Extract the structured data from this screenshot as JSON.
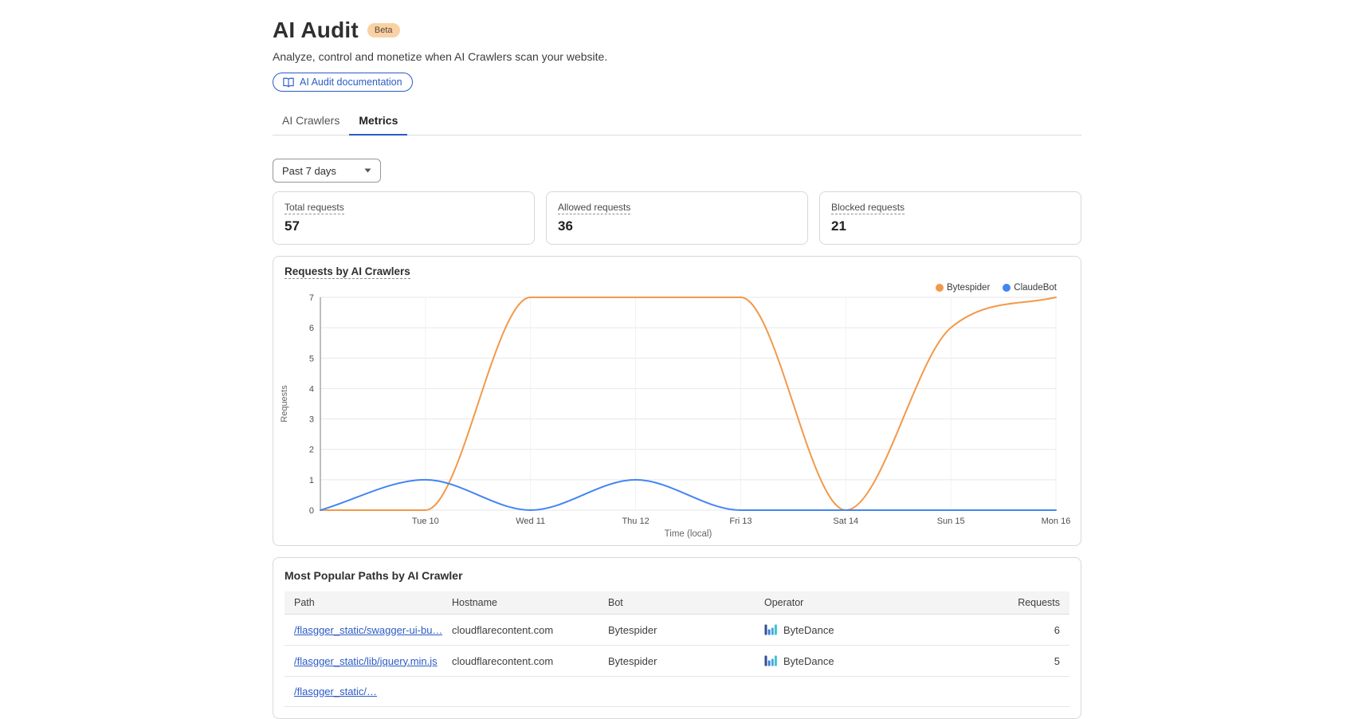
{
  "header": {
    "title": "AI Audit",
    "badge": "Beta",
    "subtitle": "Analyze, control and monetize when AI Crawlers scan your website.",
    "doc_button": "AI Audit documentation",
    "doc_button_icon": "book-icon"
  },
  "tabs": [
    {
      "label": "AI Crawlers",
      "active": false
    },
    {
      "label": "Metrics",
      "active": true
    }
  ],
  "filters": {
    "date_range": "Past 7 days",
    "caret_icon": "caret-down-icon"
  },
  "stats": [
    {
      "label": "Total requests",
      "value": "57"
    },
    {
      "label": "Allowed requests",
      "value": "36"
    },
    {
      "label": "Blocked requests",
      "value": "21"
    }
  ],
  "chart_data": {
    "type": "line",
    "title": "Requests by AI Crawlers",
    "curve": "monotone",
    "x_labels": [
      "",
      "Tue 10",
      "Wed 11",
      "Thu 12",
      "Fri 13",
      "Sat 14",
      "Sun 15",
      "Mon 16"
    ],
    "series": [
      {
        "name": "Bytespider",
        "color": "#F2994A",
        "values": [
          0,
          0,
          7,
          7,
          7,
          0,
          6,
          7
        ]
      },
      {
        "name": "ClaudeBot",
        "color": "#4285F4",
        "values": [
          0,
          1,
          0,
          1,
          0,
          0,
          0,
          0
        ]
      }
    ],
    "xlabel": "Time (local)",
    "ylabel": "Requests",
    "ylim": [
      0,
      7
    ],
    "yticks": [
      0,
      1,
      2,
      3,
      4,
      5,
      6,
      7
    ],
    "grid": true,
    "legend_position": "top-right"
  },
  "table": {
    "title": "Most Popular Paths by AI Crawler",
    "columns": [
      "Path",
      "Hostname",
      "Bot",
      "Operator",
      "Requests"
    ],
    "operator_icon": "bytedance-logo-icon",
    "rows": [
      {
        "path": "/flasgger_static/swagger-ui-bu…",
        "hostname": "cloudflarecontent.com",
        "bot": "Bytespider",
        "operator": "ByteDance",
        "requests": "6"
      },
      {
        "path": "/flasgger_static/lib/jquery.min.js",
        "hostname": "cloudflarecontent.com",
        "bot": "Bytespider",
        "operator": "ByteDance",
        "requests": "5"
      },
      {
        "path": "/flasgger_static/…",
        "hostname": "",
        "bot": "",
        "operator": "",
        "requests": ""
      }
    ]
  },
  "colors": {
    "accent_blue": "#2C5BC7",
    "badge_bg": "#FAD1A4",
    "grid_line": "#E7E7E7",
    "axis_line": "#9B9B9B",
    "header_row_bg": "#F4F4F5"
  }
}
